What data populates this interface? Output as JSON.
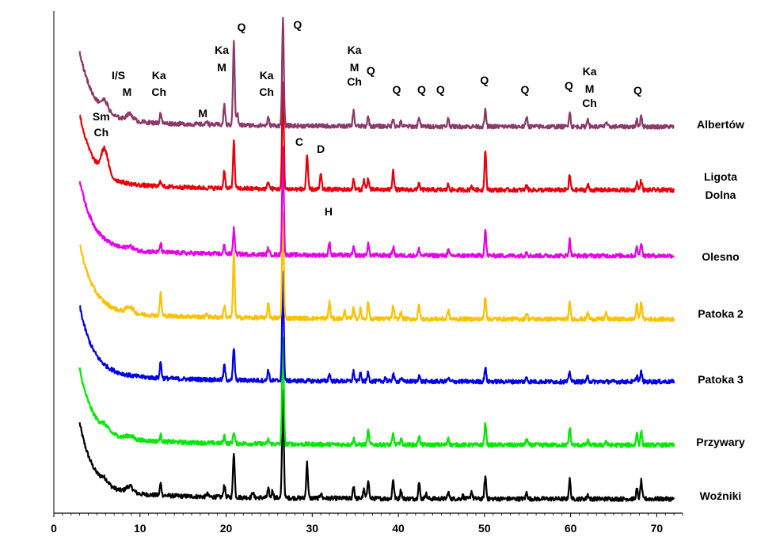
{
  "chart_data": {
    "type": "line",
    "title": "",
    "xlabel": "",
    "ylabel": "",
    "xlim": [
      0,
      73
    ],
    "xticks": [
      0,
      10,
      20,
      30,
      40,
      50,
      60,
      70
    ],
    "grid": false,
    "legend": "labels at right end of each trace",
    "series": [
      {
        "name": "Albertów",
        "color": "#8B3A6B",
        "peaks": [
          [
            5.9,
            0.45
          ],
          [
            8.8,
            0.3
          ],
          [
            12.4,
            0.5
          ],
          [
            17.8,
            0.18
          ],
          [
            19.8,
            0.95
          ],
          [
            20.9,
            4.0
          ],
          [
            21.3,
            0.55
          ],
          [
            24.9,
            0.35
          ],
          [
            26.6,
            5.0
          ],
          [
            34.8,
            0.7
          ],
          [
            36.5,
            0.45
          ],
          [
            39.4,
            0.38
          ],
          [
            40.3,
            0.2
          ],
          [
            42.4,
            0.42
          ],
          [
            45.8,
            0.38
          ],
          [
            50.1,
            0.75
          ],
          [
            54.9,
            0.45
          ],
          [
            59.9,
            0.7
          ],
          [
            62.0,
            0.4
          ],
          [
            64.1,
            0.2
          ],
          [
            67.7,
            0.3
          ],
          [
            68.2,
            0.55
          ]
        ]
      },
      {
        "name": "Ligota Dolna",
        "color": "#E8000B",
        "peaks": [
          [
            5.9,
            1.15
          ],
          [
            12.4,
            0.3
          ],
          [
            19.8,
            0.85
          ],
          [
            20.9,
            2.2
          ],
          [
            24.9,
            0.35
          ],
          [
            26.6,
            5.0
          ],
          [
            29.4,
            1.6
          ],
          [
            31.0,
            0.7
          ],
          [
            34.8,
            0.45
          ],
          [
            36.0,
            0.45
          ],
          [
            36.5,
            0.55
          ],
          [
            39.4,
            0.95
          ],
          [
            42.4,
            0.35
          ],
          [
            45.8,
            0.25
          ],
          [
            48.5,
            0.2
          ],
          [
            50.1,
            1.9
          ],
          [
            54.9,
            0.25
          ],
          [
            59.9,
            0.7
          ],
          [
            62.0,
            0.25
          ],
          [
            67.7,
            0.35
          ],
          [
            68.2,
            0.45
          ]
        ]
      },
      {
        "name": "Olesno",
        "color": "#E600E6",
        "peaks": [
          [
            8.8,
            0.15
          ],
          [
            12.4,
            0.4
          ],
          [
            19.8,
            0.4
          ],
          [
            20.9,
            1.2
          ],
          [
            24.9,
            0.3
          ],
          [
            26.6,
            5.0
          ],
          [
            32.0,
            0.6
          ],
          [
            34.8,
            0.35
          ],
          [
            36.5,
            0.55
          ],
          [
            39.4,
            0.4
          ],
          [
            42.4,
            0.3
          ],
          [
            45.8,
            0.25
          ],
          [
            50.1,
            1.2
          ],
          [
            54.9,
            0.2
          ],
          [
            59.9,
            0.75
          ],
          [
            67.7,
            0.4
          ],
          [
            68.2,
            0.65
          ]
        ]
      },
      {
        "name": "Patoka 2",
        "color": "#FFC000",
        "peaks": [
          [
            8.8,
            0.3
          ],
          [
            12.4,
            1.05
          ],
          [
            17.8,
            0.15
          ],
          [
            19.8,
            0.55
          ],
          [
            20.9,
            3.0
          ],
          [
            24.9,
            0.75
          ],
          [
            26.6,
            5.0
          ],
          [
            32.0,
            0.8
          ],
          [
            33.8,
            0.35
          ],
          [
            34.8,
            0.55
          ],
          [
            35.6,
            0.45
          ],
          [
            36.5,
            0.8
          ],
          [
            39.4,
            0.6
          ],
          [
            40.3,
            0.3
          ],
          [
            42.4,
            0.65
          ],
          [
            45.8,
            0.4
          ],
          [
            50.1,
            1.05
          ],
          [
            54.9,
            0.3
          ],
          [
            59.9,
            0.8
          ],
          [
            62.0,
            0.3
          ],
          [
            64.1,
            0.3
          ],
          [
            67.7,
            0.7
          ],
          [
            68.2,
            0.85
          ]
        ]
      },
      {
        "name": "Patoka 3",
        "color": "#0000E8",
        "peaks": [
          [
            12.4,
            0.75
          ],
          [
            19.8,
            0.7
          ],
          [
            20.9,
            1.5
          ],
          [
            24.9,
            0.5
          ],
          [
            26.6,
            5.0
          ],
          [
            32.0,
            0.35
          ],
          [
            34.8,
            0.45
          ],
          [
            35.6,
            0.35
          ],
          [
            36.5,
            0.45
          ],
          [
            38.5,
            0.2
          ],
          [
            39.4,
            0.35
          ],
          [
            40.3,
            0.15
          ],
          [
            42.4,
            0.3
          ],
          [
            45.8,
            0.15
          ],
          [
            50.1,
            0.65
          ],
          [
            54.9,
            0.2
          ],
          [
            59.9,
            0.45
          ],
          [
            62.0,
            0.25
          ],
          [
            67.7,
            0.3
          ],
          [
            68.2,
            0.45
          ]
        ]
      },
      {
        "name": "Przywary",
        "color": "#00E800",
        "peaks": [
          [
            5.9,
            0.2
          ],
          [
            8.8,
            0.15
          ],
          [
            12.4,
            0.3
          ],
          [
            19.8,
            0.35
          ],
          [
            20.9,
            0.55
          ],
          [
            24.9,
            0.2
          ],
          [
            26.6,
            5.0
          ],
          [
            34.8,
            0.3
          ],
          [
            36.5,
            0.65
          ],
          [
            39.4,
            0.5
          ],
          [
            40.3,
            0.3
          ],
          [
            42.4,
            0.45
          ],
          [
            45.8,
            0.35
          ],
          [
            50.1,
            1.0
          ],
          [
            54.9,
            0.3
          ],
          [
            59.9,
            0.8
          ],
          [
            62.0,
            0.2
          ],
          [
            64.1,
            0.2
          ],
          [
            67.7,
            0.55
          ],
          [
            68.2,
            0.65
          ]
        ]
      },
      {
        "name": "Woźniki",
        "color": "#000000",
        "peaks": [
          [
            5.9,
            0.2
          ],
          [
            8.8,
            0.3
          ],
          [
            12.4,
            0.55
          ],
          [
            17.8,
            0.15
          ],
          [
            19.8,
            0.6
          ],
          [
            20.9,
            2.1
          ],
          [
            23.1,
            0.25
          ],
          [
            24.9,
            0.4
          ],
          [
            25.4,
            0.35
          ],
          [
            26.6,
            5.0
          ],
          [
            29.4,
            1.65
          ],
          [
            31.0,
            0.25
          ],
          [
            34.8,
            0.6
          ],
          [
            36.0,
            0.4
          ],
          [
            36.5,
            0.9
          ],
          [
            39.4,
            0.9
          ],
          [
            40.3,
            0.4
          ],
          [
            42.4,
            0.75
          ],
          [
            43.2,
            0.25
          ],
          [
            45.8,
            0.3
          ],
          [
            47.5,
            0.15
          ],
          [
            48.5,
            0.35
          ],
          [
            50.1,
            1.05
          ],
          [
            54.9,
            0.3
          ],
          [
            59.9,
            0.9
          ],
          [
            62.0,
            0.2
          ],
          [
            67.7,
            0.45
          ],
          [
            68.2,
            0.85
          ]
        ]
      }
    ],
    "annotations": [
      {
        "text": "Sm",
        "x": 5.5
      },
      {
        "text": "Ch",
        "x": 5.5
      },
      {
        "text": "I/S",
        "x": 7.5
      },
      {
        "text": "M",
        "x": 8.5
      },
      {
        "text": "Ka",
        "x": 12.2
      },
      {
        "text": "Ch",
        "x": 12.2
      },
      {
        "text": "M",
        "x": 17.3
      },
      {
        "text": "Ka",
        "x": 19.5
      },
      {
        "text": "M",
        "x": 19.5
      },
      {
        "text": "Q",
        "x": 21.8
      },
      {
        "text": "Ka",
        "x": 24.7
      },
      {
        "text": "Ch",
        "x": 24.7
      },
      {
        "text": "Q",
        "x": 28.3
      },
      {
        "text": "C",
        "x": 28.5
      },
      {
        "text": "D",
        "x": 31.0
      },
      {
        "text": "Ka",
        "x": 34.9
      },
      {
        "text": "M",
        "x": 34.9
      },
      {
        "text": "Ch",
        "x": 34.9
      },
      {
        "text": "Q",
        "x": 36.8
      },
      {
        "text": "H",
        "x": 31.9
      },
      {
        "text": "Q",
        "x": 39.8
      },
      {
        "text": "Q",
        "x": 42.7
      },
      {
        "text": "Q",
        "x": 44.9
      },
      {
        "text": "Q",
        "x": 50.0
      },
      {
        "text": "Q",
        "x": 54.7
      },
      {
        "text": "Q",
        "x": 59.8
      },
      {
        "text": "Ka",
        "x": 62.2
      },
      {
        "text": "M",
        "x": 62.2
      },
      {
        "text": "Ch",
        "x": 62.2
      },
      {
        "text": "Q",
        "x": 67.8
      }
    ]
  }
}
